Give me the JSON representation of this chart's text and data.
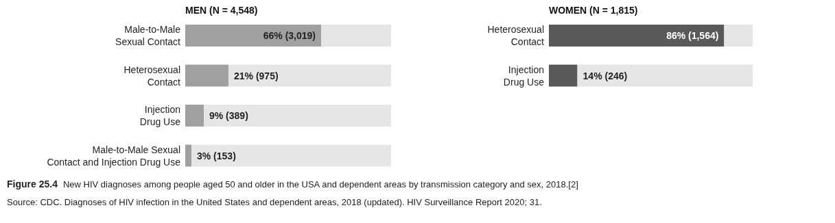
{
  "chart_data": [
    {
      "type": "bar",
      "orientation": "horizontal",
      "stacked": true,
      "title": "MEN (N = 4,548)",
      "categories": [
        "Male-to-Male\nSexual Contact",
        "Heterosexual\nContact",
        "Injection\nDrug Use",
        "Male-to-Male Sexual\nContact and Injection Drug Use"
      ],
      "series": [
        {
          "color": "#a0a0a0",
          "values": [
            66,
            21,
            9,
            3
          ],
          "value_labels": [
            "66% (3,019)",
            "21% (975)",
            "9% (389)",
            "3% (153)"
          ]
        },
        {
          "color": "#e6e6e6",
          "values": [
            34,
            79,
            91,
            97
          ]
        }
      ],
      "xlim": [
        0,
        100
      ],
      "annotations": [
        "Figure 25.4",
        "New HIV diagnoses among people aged 50 and older in the USA and dependent areas by transmission category and sex, 2018.[2]",
        "Source: CDC. Diagnoses of HIV infection in the United States and dependent areas, 2018 (updated). HIV Surveillance Report 2020; 31."
      ]
    },
    {
      "type": "bar",
      "orientation": "horizontal",
      "stacked": true,
      "title": "WOMEN (N = 1,815)",
      "categories": [
        "Heterosexual\nContact",
        "Injection\nDrug Use"
      ],
      "series": [
        {
          "color": "#595959",
          "values": [
            86,
            14
          ],
          "value_labels": [
            "86% (1,564)",
            "14% (246)"
          ]
        },
        {
          "color": "#e6e6e6",
          "values": [
            14,
            86
          ]
        }
      ],
      "xlim": [
        0,
        100
      ]
    }
  ]
}
